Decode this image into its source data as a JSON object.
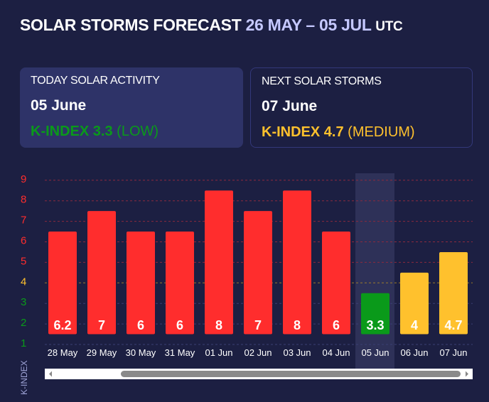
{
  "header": {
    "title": "SOLAR STORMS FORECAST",
    "range": "26 MAY – 05 JUL",
    "tz": "UTC"
  },
  "today": {
    "label": "TODAY SOLAR ACTIVITY",
    "date": "05 June",
    "kindex": "K-INDEX 3.3",
    "level": "(LOW)",
    "color": "#0a9a1a"
  },
  "next": {
    "label": "NEXT SOLAR STORMS",
    "date": "07 June",
    "kindex": "K-INDEX 4.7",
    "level": "(MEDIUM)",
    "color": "#ffc12d"
  },
  "colors": {
    "high": "#ff2d2d",
    "medium": "#ffc12d",
    "low": "#0a9a1a"
  },
  "chart_data": {
    "type": "bar",
    "ylabel": "K-INDEX",
    "yticks": [
      1,
      2,
      3,
      4,
      5,
      6,
      7,
      8,
      9
    ],
    "categories": [
      "28 May",
      "29 May",
      "30 May",
      "31 May",
      "01 Jun",
      "02 Jun",
      "03 Jun",
      "04 Jun",
      "05 Jun",
      "06 Jun",
      "07 Jun"
    ],
    "values": [
      6.2,
      7,
      6,
      6,
      8,
      7,
      8,
      6,
      3.3,
      4,
      4.7
    ],
    "labels": [
      "6.2",
      "7",
      "6",
      "6",
      "8",
      "7",
      "8",
      "6",
      "3.3",
      "4",
      "4.7"
    ],
    "highlighted": "05 Jun",
    "ylim": [
      1,
      9
    ],
    "grid": true
  }
}
